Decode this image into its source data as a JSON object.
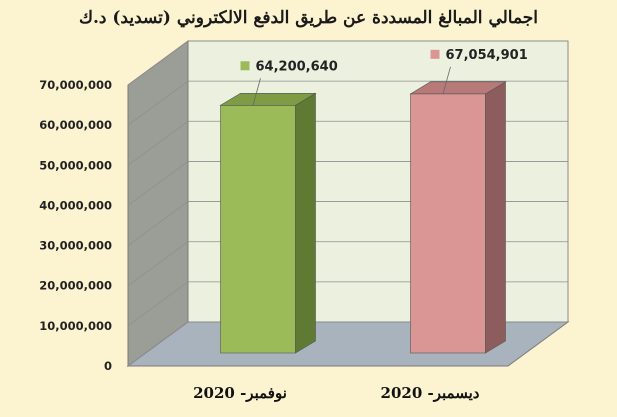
{
  "chart_data": {
    "type": "bar",
    "title": "اجمالي المبالغ المسددة عن طريق الدفع الالكتروني (تسديد) د.ك",
    "categories": [
      "نوفمبر- 2020",
      "ديسمبر- 2020"
    ],
    "series": [
      {
        "values": [
          64200640,
          67054901
        ]
      }
    ],
    "value_labels": [
      "64,200,640",
      "67,054,901"
    ],
    "y_ticks": [
      0,
      10000000,
      20000000,
      30000000,
      40000000,
      50000000,
      60000000,
      70000000
    ],
    "y_tick_labels": [
      "0",
      "10,000,000",
      "20,000,000",
      "30,000,000",
      "40,000,000",
      "50,000,000",
      "60,000,000",
      "70,000,000"
    ],
    "ylim": [
      0,
      70000000
    ],
    "grid": true,
    "three_d": true,
    "bar_colors": [
      "#9bbb59",
      "#d99694"
    ],
    "bar_side_colors": [
      "#5f7a32",
      "#8c5d5c"
    ],
    "bar_top_colors": [
      "#7e9c44",
      "#b87a79"
    ]
  }
}
